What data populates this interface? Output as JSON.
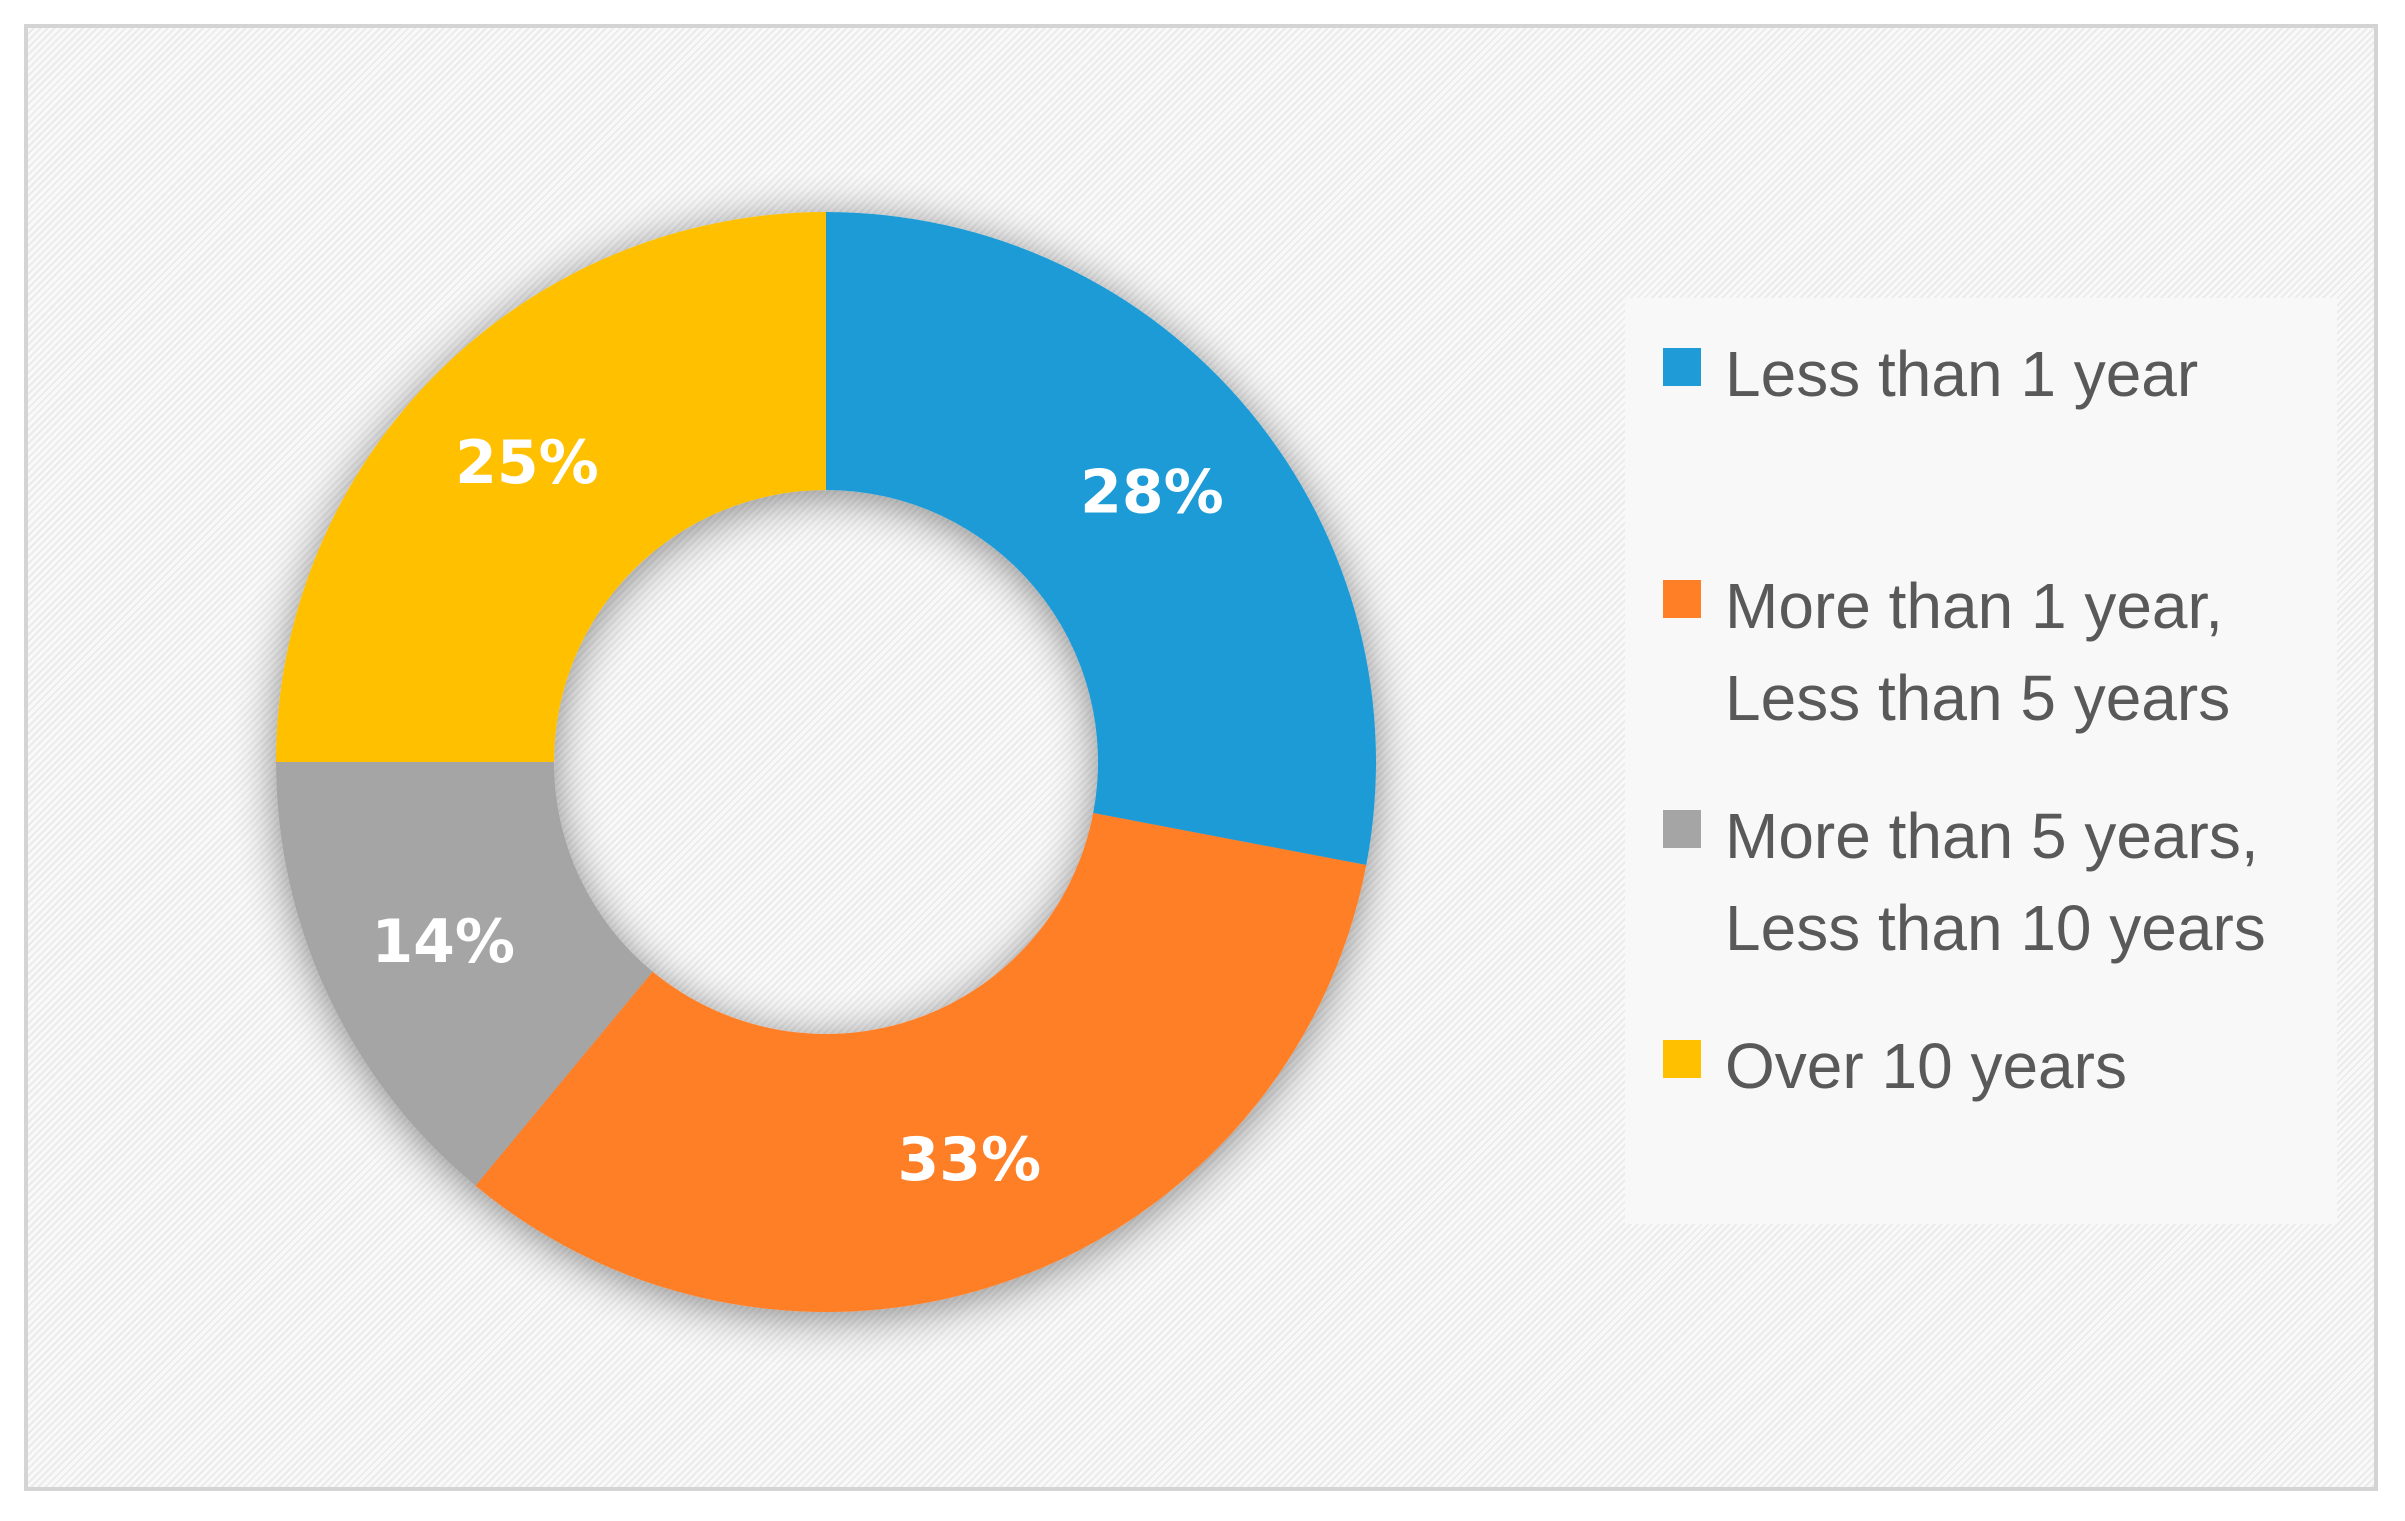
{
  "chart_data": {
    "type": "pie",
    "style": "donut",
    "slices": [
      {
        "label": "Less than 1 year",
        "value": 28,
        "value_label": "28%",
        "color": "#1F9BD7"
      },
      {
        "label": "More than 1 year,\nLess than 5 years",
        "value": 33,
        "value_label": "33%",
        "color": "#FF7F27"
      },
      {
        "label": "More than 5 years,\nLess than 10 years",
        "value": 14,
        "value_label": "14%",
        "color": "#A5A5A5"
      },
      {
        "label": "Over 10 years",
        "value": 25,
        "value_label": "25%",
        "color": "#FFC000"
      }
    ],
    "legend_position": "right",
    "start_angle": "12 o'clock",
    "direction": "clockwise"
  }
}
